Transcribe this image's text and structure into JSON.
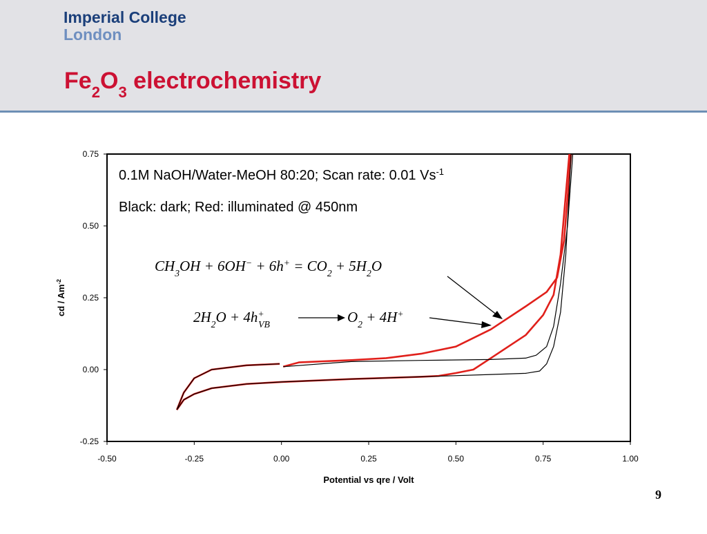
{
  "logo": {
    "line1": "Imperial College",
    "line2": "London"
  },
  "title": [
    {
      "t": "Fe"
    },
    {
      "t": "2",
      "s": "sub"
    },
    {
      "t": "O"
    },
    {
      "t": "3",
      "s": "sub"
    },
    {
      "t": " electrochemistry"
    }
  ],
  "page_number": "9",
  "chart_data": {
    "type": "line",
    "xlabel": "Potential vs qre / Volt",
    "ylabel": [
      {
        "t": "cd / Am"
      },
      {
        "t": "-2",
        "s": "sup"
      }
    ],
    "annotations": [
      [
        {
          "t": "0.1M NaOH/Water-MeOH 80:20; Scan rate: 0.01 Vs"
        },
        {
          "t": "-1",
          "s": "sup"
        }
      ],
      [
        {
          "t": "Black: dark; Red: illuminated @ 450nm"
        }
      ]
    ],
    "equations": [
      [
        {
          "t": "CH"
        },
        {
          "t": "3",
          "s": "sub"
        },
        {
          "t": "OH + 6OH"
        },
        {
          "t": "−",
          "s": "sup"
        },
        {
          "t": " + 6h"
        },
        {
          "t": "+",
          "s": "sup"
        },
        {
          "t": " = CO"
        },
        {
          "t": "2",
          "s": "sub"
        },
        {
          "t": " + 5H"
        },
        {
          "t": "2",
          "s": "sub"
        },
        {
          "t": "O"
        }
      ],
      [
        {
          "t": "2H"
        },
        {
          "t": "2",
          "s": "sub"
        },
        {
          "t": "O + 4h"
        },
        {
          "t": "+",
          "s": "sup"
        },
        {
          "t": "VB",
          "s": "sub"
        }
      ],
      [
        {
          "t": "O"
        },
        {
          "t": "2",
          "s": "sub"
        },
        {
          "t": " + 4H"
        },
        {
          "t": "+",
          "s": "sup"
        }
      ]
    ],
    "xlim": [
      -0.5,
      1.0
    ],
    "ylim": [
      -0.25,
      0.75
    ],
    "xticks": [
      {
        "value": -0.5,
        "label": "-0.50"
      },
      {
        "value": -0.25,
        "label": "-0.25"
      },
      {
        "value": 0,
        "label": "0.00"
      },
      {
        "value": 0.25,
        "label": "0.25"
      },
      {
        "value": 0.5,
        "label": "0.50"
      },
      {
        "value": 0.75,
        "label": "0.75"
      },
      {
        "value": 1.0,
        "label": "1.00"
      }
    ],
    "yticks": [
      {
        "value": -0.25,
        "label": "-0.25"
      },
      {
        "value": 0,
        "label": "0.00"
      },
      0.25,
      {
        "value": 0.5,
        "label": "0.50"
      },
      0.75
    ],
    "series": [
      {
        "color": "#e0201b",
        "width": 2.6,
        "x": [
          -0.3,
          -0.28,
          -0.25,
          -0.2,
          -0.1,
          0,
          0.2,
          0.4,
          0.45,
          0.5,
          0.55,
          0.6,
          0.7,
          0.75,
          0.78,
          0.8,
          0.825,
          0.83,
          0.81,
          0.79,
          0.76,
          0.7,
          0.6,
          0.5,
          0.4,
          0.3,
          0.2,
          0.05,
          0.005,
          null,
          -0.005,
          -0.1,
          -0.2,
          -0.25,
          -0.28,
          -0.3
        ],
        "values": [
          -0.14,
          -0.105,
          -0.085,
          -0.065,
          -0.05,
          -0.043,
          -0.033,
          -0.025,
          -0.022,
          -0.012,
          0.0,
          0.04,
          0.12,
          0.19,
          0.26,
          0.4,
          0.75,
          0.75,
          0.45,
          0.32,
          0.27,
          0.22,
          0.14,
          0.08,
          0.055,
          0.04,
          0.033,
          0.025,
          0.01,
          null,
          0.02,
          0.015,
          0.0,
          -0.03,
          -0.08,
          -0.14
        ]
      },
      {
        "color": "#000000",
        "width": 1.2,
        "x": [
          -0.3,
          -0.28,
          -0.25,
          -0.2,
          -0.1,
          0,
          0.2,
          0.4,
          0.6,
          0.7,
          0.74,
          0.76,
          0.78,
          0.8,
          0.815,
          0.83,
          0.835,
          0.82,
          0.8,
          0.78,
          0.76,
          0.73,
          0.7,
          0.6,
          0.4,
          0.2,
          0.005,
          null,
          -0.005,
          -0.1,
          -0.2,
          -0.25,
          -0.28,
          -0.3
        ],
        "values": [
          -0.14,
          -0.105,
          -0.085,
          -0.065,
          -0.05,
          -0.043,
          -0.033,
          -0.025,
          -0.017,
          -0.013,
          -0.005,
          0.02,
          0.08,
          0.2,
          0.4,
          0.75,
          0.75,
          0.5,
          0.3,
          0.15,
          0.08,
          0.05,
          0.04,
          0.035,
          0.032,
          0.028,
          0.01,
          null,
          0.02,
          0.015,
          0.0,
          -0.03,
          -0.08,
          -0.14
        ]
      }
    ]
  }
}
